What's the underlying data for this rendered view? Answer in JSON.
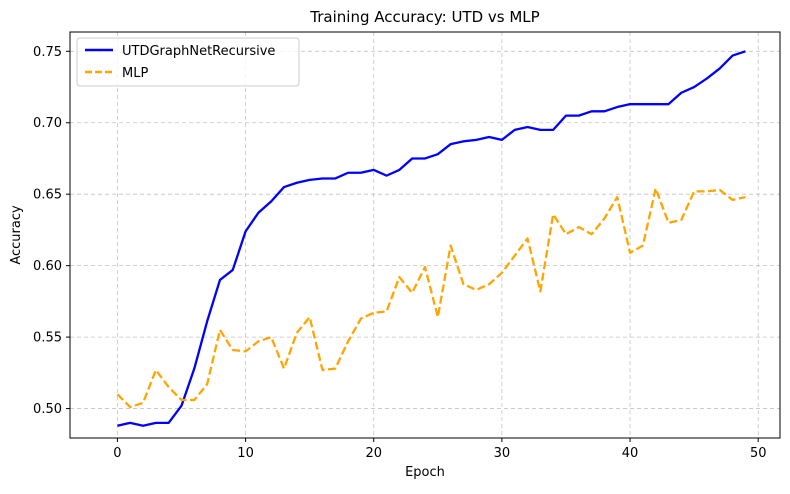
{
  "chart_data": {
    "type": "line",
    "title": "Training Accuracy: UTD vs MLP",
    "xlabel": "Epoch",
    "ylabel": "Accuracy",
    "xlim": [
      -3.7,
      51.7
    ],
    "ylim": [
      0.4794,
      0.7635
    ],
    "xticks": [
      0,
      10,
      20,
      30,
      40,
      50
    ],
    "xtick_labels": [
      "0",
      "10",
      "20",
      "30",
      "40",
      "50"
    ],
    "yticks": [
      0.5,
      0.55,
      0.6,
      0.65,
      0.7,
      0.75
    ],
    "ytick_labels": [
      "0.50",
      "0.55",
      "0.60",
      "0.65",
      "0.70",
      "0.75"
    ],
    "grid": true,
    "legend_position": "top-left",
    "x": [
      0,
      1,
      2,
      3,
      4,
      5,
      6,
      7,
      8,
      9,
      10,
      11,
      12,
      13,
      14,
      15,
      16,
      17,
      18,
      19,
      20,
      21,
      22,
      23,
      24,
      25,
      26,
      27,
      28,
      29,
      30,
      31,
      32,
      33,
      34,
      35,
      36,
      37,
      38,
      39,
      40,
      41,
      42,
      43,
      44,
      45,
      46,
      47,
      48,
      49
    ],
    "series": [
      {
        "name": "UTDGraphNetRecursive",
        "color": "#0000ff",
        "style": "solid",
        "values": [
          0.488,
          0.49,
          0.488,
          0.49,
          0.49,
          0.502,
          0.528,
          0.561,
          0.59,
          0.597,
          0.624,
          0.637,
          0.645,
          0.655,
          0.658,
          0.66,
          0.661,
          0.661,
          0.665,
          0.665,
          0.667,
          0.663,
          0.667,
          0.675,
          0.675,
          0.678,
          0.685,
          0.687,
          0.688,
          0.69,
          0.688,
          0.695,
          0.697,
          0.695,
          0.695,
          0.705,
          0.705,
          0.708,
          0.708,
          0.711,
          0.713,
          0.713,
          0.713,
          0.713,
          0.721,
          0.725,
          0.731,
          0.738,
          0.747,
          0.75
        ]
      },
      {
        "name": "MLP",
        "color": "#ffa500",
        "style": "dashed",
        "values": [
          0.51,
          0.501,
          0.504,
          0.527,
          0.515,
          0.506,
          0.506,
          0.517,
          0.555,
          0.541,
          0.54,
          0.547,
          0.55,
          0.528,
          0.553,
          0.564,
          0.527,
          0.528,
          0.547,
          0.563,
          0.567,
          0.568,
          0.592,
          0.581,
          0.599,
          0.564,
          0.614,
          0.587,
          0.583,
          0.587,
          0.595,
          0.607,
          0.619,
          0.582,
          0.636,
          0.622,
          0.627,
          0.622,
          0.633,
          0.648,
          0.609,
          0.614,
          0.654,
          0.63,
          0.632,
          0.652,
          0.652,
          0.653,
          0.646,
          0.648
        ]
      }
    ]
  }
}
